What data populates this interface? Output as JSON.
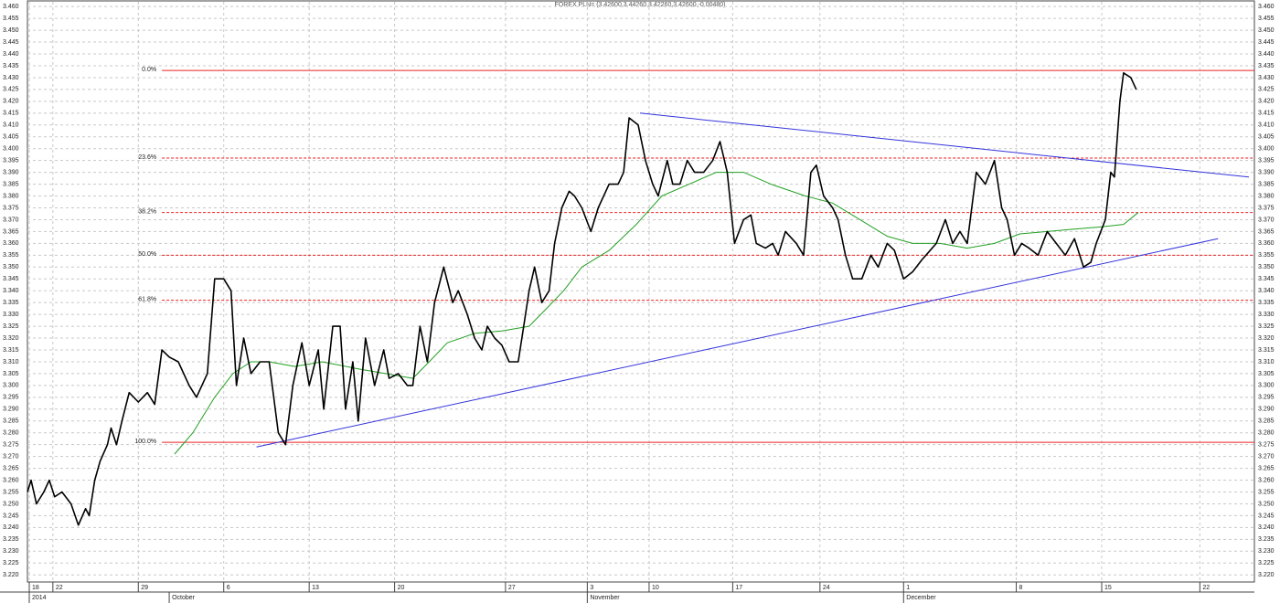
{
  "chart_data": {
    "type": "line",
    "title": "FOREX PLN= (3.42600,3.44260,3.42260,3.42600,-0.00480)",
    "xlim": [
      1.1,
      68.6
    ],
    "ylim": [
      3.217,
      3.462
    ],
    "grid": true,
    "xticks": [
      {
        "value": 1.2,
        "label": "18"
      },
      {
        "value": 2.5,
        "label": "22"
      },
      {
        "value": 7.2,
        "label": "29"
      },
      {
        "value": 11.9,
        "label": "6"
      },
      {
        "value": 16.6,
        "label": "13"
      },
      {
        "value": 21.3,
        "label": "20"
      },
      {
        "value": 27.4,
        "label": "27"
      },
      {
        "value": 31.9,
        "label": "3"
      },
      {
        "value": 35.3,
        "label": "10"
      },
      {
        "value": 39.9,
        "label": "17"
      },
      {
        "value": 44.7,
        "label": "24"
      },
      {
        "value": 49.3,
        "label": "1"
      },
      {
        "value": 55.5,
        "label": "8"
      },
      {
        "value": 60.2,
        "label": "15"
      },
      {
        "value": 65.6,
        "label": "22"
      }
    ],
    "xticks_months": [
      {
        "value": 1.2,
        "label": "2014"
      },
      {
        "value": 8.9,
        "label": "October"
      },
      {
        "value": 31.9,
        "label": "November"
      },
      {
        "value": 49.3,
        "label": "December"
      }
    ],
    "yticks": [
      {
        "value": 3.22,
        "label": "3.220"
      },
      {
        "value": 3.225,
        "label": "3.225"
      },
      {
        "value": 3.23,
        "label": "3.230"
      },
      {
        "value": 3.235,
        "label": "3.235"
      },
      {
        "value": 3.24,
        "label": "3.240"
      },
      {
        "value": 3.245,
        "label": "3.245"
      },
      {
        "value": 3.25,
        "label": "3.250"
      },
      {
        "value": 3.255,
        "label": "3.255"
      },
      {
        "value": 3.26,
        "label": "3.260"
      },
      {
        "value": 3.265,
        "label": "3.265"
      },
      {
        "value": 3.27,
        "label": "3.270"
      },
      {
        "value": 3.275,
        "label": "3.275"
      },
      {
        "value": 3.28,
        "label": "3.280"
      },
      {
        "value": 3.285,
        "label": "3.285"
      },
      {
        "value": 3.29,
        "label": "3.290"
      },
      {
        "value": 3.295,
        "label": "3.295"
      },
      {
        "value": 3.3,
        "label": "3.300"
      },
      {
        "value": 3.305,
        "label": "3.305"
      },
      {
        "value": 3.31,
        "label": "3.310"
      },
      {
        "value": 3.315,
        "label": "3.315"
      },
      {
        "value": 3.32,
        "label": "3.320"
      },
      {
        "value": 3.325,
        "label": "3.325"
      },
      {
        "value": 3.33,
        "label": "3.330"
      },
      {
        "value": 3.335,
        "label": "3.335"
      },
      {
        "value": 3.34,
        "label": "3.340"
      },
      {
        "value": 3.345,
        "label": "3.345"
      },
      {
        "value": 3.35,
        "label": "3.350"
      },
      {
        "value": 3.355,
        "label": "3.355"
      },
      {
        "value": 3.36,
        "label": "3.360"
      },
      {
        "value": 3.365,
        "label": "3.365"
      },
      {
        "value": 3.37,
        "label": "3.370"
      },
      {
        "value": 3.375,
        "label": "3.375"
      },
      {
        "value": 3.38,
        "label": "3.380"
      },
      {
        "value": 3.385,
        "label": "3.385"
      },
      {
        "value": 3.39,
        "label": "3.390"
      },
      {
        "value": 3.395,
        "label": "3.395"
      },
      {
        "value": 3.4,
        "label": "3.400"
      },
      {
        "value": 3.405,
        "label": "3.405"
      },
      {
        "value": 3.41,
        "label": "3.410"
      },
      {
        "value": 3.415,
        "label": "3.415"
      },
      {
        "value": 3.42,
        "label": "3.420"
      },
      {
        "value": 3.425,
        "label": "3.425"
      },
      {
        "value": 3.43,
        "label": "3.430"
      },
      {
        "value": 3.435,
        "label": "3.435"
      },
      {
        "value": 3.44,
        "label": "3.440"
      },
      {
        "value": 3.445,
        "label": "3.445"
      },
      {
        "value": 3.45,
        "label": "3.450"
      },
      {
        "value": 3.455,
        "label": "3.455"
      },
      {
        "value": 3.46,
        "label": "3.460"
      }
    ],
    "series": [
      {
        "color": "#000000",
        "x": [
          1.1,
          1.3,
          1.6,
          2.0,
          2.3,
          2.6,
          3.0,
          3.5,
          3.9,
          4.3,
          4.5,
          4.8,
          5.1,
          5.5,
          5.7,
          6.0,
          6.3,
          6.7,
          7.2,
          7.7,
          8.1,
          8.5,
          8.9,
          9.4,
          10.0,
          10.4,
          11.0,
          11.4,
          11.9,
          12.3,
          12.6,
          13.0,
          13.4,
          13.9,
          14.4,
          14.9,
          15.3,
          15.7,
          16.2,
          16.6,
          17.1,
          17.4,
          17.9,
          18.3,
          18.6,
          19.0,
          19.3,
          19.7,
          20.2,
          20.7,
          21.0,
          21.5,
          22.0,
          22.3,
          22.7,
          23.1,
          23.5,
          24.0,
          24.5,
          24.8,
          25.3,
          25.7,
          26.1,
          26.4,
          26.8,
          27.2,
          27.6,
          28.1,
          28.4,
          28.7,
          29.0,
          29.4,
          29.8,
          30.1,
          30.5,
          30.9,
          31.2,
          31.6,
          32.1,
          32.5,
          33.1,
          33.6,
          33.9,
          34.2,
          34.7,
          35.1,
          35.5,
          35.8,
          36.3,
          36.6,
          37.0,
          37.4,
          37.8,
          38.3,
          38.8,
          39.2,
          39.6,
          40.0,
          40.5,
          40.9,
          41.2,
          41.7,
          42.1,
          42.4,
          42.8,
          43.4,
          43.8,
          44.2,
          44.5,
          44.9,
          45.4,
          45.7,
          46.1,
          46.5,
          47.0,
          47.5,
          47.9,
          48.4,
          48.8,
          49.3,
          49.8,
          50.3,
          51.1,
          51.6,
          52.0,
          52.4,
          52.8,
          53.3,
          53.8,
          54.3,
          54.7,
          55.0,
          55.4,
          55.8,
          56.2,
          56.7,
          57.2,
          57.7,
          58.2,
          58.7,
          59.2,
          59.6,
          59.9,
          60.4,
          60.7,
          60.9,
          61.2,
          61.4,
          61.8,
          62.1
        ],
        "values": [
          3.255,
          3.26,
          3.25,
          3.255,
          3.26,
          3.253,
          3.255,
          3.25,
          3.241,
          3.248,
          3.245,
          3.26,
          3.268,
          3.275,
          3.282,
          3.275,
          3.285,
          3.297,
          3.293,
          3.297,
          3.292,
          3.315,
          3.312,
          3.31,
          3.3,
          3.295,
          3.305,
          3.345,
          3.345,
          3.34,
          3.3,
          3.32,
          3.305,
          3.31,
          3.31,
          3.28,
          3.275,
          3.3,
          3.318,
          3.3,
          3.315,
          3.29,
          3.325,
          3.325,
          3.29,
          3.31,
          3.285,
          3.32,
          3.3,
          3.315,
          3.303,
          3.305,
          3.3,
          3.3,
          3.325,
          3.31,
          3.335,
          3.35,
          3.335,
          3.34,
          3.33,
          3.32,
          3.315,
          3.325,
          3.32,
          3.317,
          3.31,
          3.31,
          3.325,
          3.34,
          3.35,
          3.335,
          3.34,
          3.36,
          3.375,
          3.382,
          3.38,
          3.375,
          3.365,
          3.375,
          3.385,
          3.385,
          3.39,
          3.413,
          3.41,
          3.395,
          3.385,
          3.38,
          3.395,
          3.385,
          3.385,
          3.395,
          3.39,
          3.39,
          3.395,
          3.403,
          3.39,
          3.36,
          3.37,
          3.372,
          3.36,
          3.358,
          3.36,
          3.355,
          3.365,
          3.36,
          3.355,
          3.39,
          3.393,
          3.38,
          3.375,
          3.37,
          3.355,
          3.345,
          3.345,
          3.355,
          3.35,
          3.36,
          3.357,
          3.345,
          3.348,
          3.353,
          3.36,
          3.37,
          3.36,
          3.365,
          3.36,
          3.39,
          3.385,
          3.395,
          3.375,
          3.37,
          3.355,
          3.36,
          3.358,
          3.355,
          3.365,
          3.36,
          3.355,
          3.362,
          3.35,
          3.352,
          3.36,
          3.37,
          3.39,
          3.388,
          3.42,
          3.432,
          3.43,
          3.425
        ]
      },
      {
        "color": "#22a022",
        "x": [
          9.2,
          10.2,
          11.4,
          12.4,
          13.4,
          14.4,
          15.8,
          17.3,
          19.3,
          20.8,
          22.3,
          23.2,
          24.2,
          25.7,
          27.2,
          28.7,
          29.6,
          30.6,
          31.6,
          33.1,
          34.6,
          36.0,
          37.5,
          39.0,
          40.5,
          42.0,
          43.9,
          45.4,
          46.9,
          48.4,
          49.8,
          51.3,
          52.8,
          54.3,
          55.7,
          57.2,
          58.7,
          60.2,
          61.4,
          62.2
        ],
        "values": [
          3.271,
          3.28,
          3.295,
          3.305,
          3.31,
          3.31,
          3.308,
          3.31,
          3.307,
          3.305,
          3.303,
          3.31,
          3.318,
          3.322,
          3.323,
          3.325,
          3.332,
          3.34,
          3.35,
          3.357,
          3.368,
          3.38,
          3.385,
          3.39,
          3.39,
          3.385,
          3.38,
          3.377,
          3.37,
          3.363,
          3.36,
          3.36,
          3.358,
          3.36,
          3.364,
          3.365,
          3.366,
          3.367,
          3.368,
          3.373
        ]
      }
    ],
    "trendlines": [
      {
        "color": "#3333dd",
        "x": [
          34.8,
          68.3
        ],
        "values": [
          3.415,
          3.388
        ]
      },
      {
        "color": "#3333dd",
        "x": [
          13.7,
          66.6
        ],
        "values": [
          3.274,
          3.362
        ]
      }
    ],
    "levels_color": "#ee2222",
    "levels_start": 8.5,
    "levels": [
      {
        "value": 3.433,
        "label": "0.0%"
      },
      {
        "value": 3.396,
        "label": "23.6%"
      },
      {
        "value": 3.373,
        "label": "38.2%"
      },
      {
        "value": 3.355,
        "label": "50.0%"
      },
      {
        "value": 3.336,
        "label": "61.8%"
      },
      {
        "value": 3.276,
        "label": "100.0%"
      }
    ]
  }
}
